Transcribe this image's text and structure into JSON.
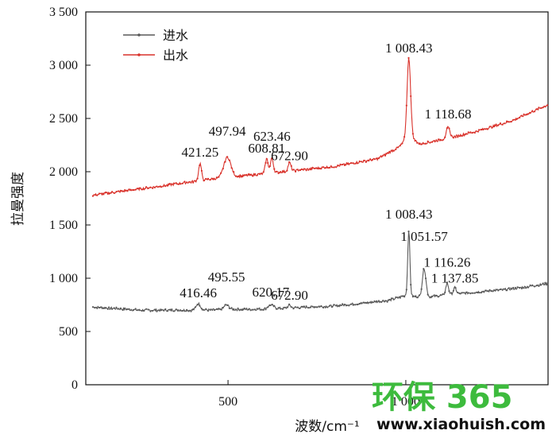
{
  "chart_data": {
    "type": "line",
    "xlabel": "波数/cm⁻¹",
    "ylabel": "拉曼强度",
    "xlim": [
      100,
      1400
    ],
    "ylim": [
      0,
      3500
    ],
    "x_ticks": [
      500,
      1000
    ],
    "x_tick_labels": [
      "500",
      "1 000"
    ],
    "y_ticks": [
      0,
      500,
      1000,
      1500,
      2000,
      2500,
      3000,
      3500
    ],
    "y_tick_labels": [
      "0",
      "500",
      "1 000",
      "1 500",
      "2 000",
      "2 500",
      "3 000",
      "3 500"
    ],
    "legend": {
      "placement": "top-left"
    },
    "series": [
      {
        "name": "进水",
        "color": "#595959",
        "baseline": [
          [
            120,
            730
          ],
          [
            250,
            700
          ],
          [
            400,
            700
          ],
          [
            600,
            710
          ],
          [
            800,
            740
          ],
          [
            950,
            790
          ],
          [
            1000,
            840
          ],
          [
            1050,
            820
          ],
          [
            1150,
            855
          ],
          [
            1300,
            900
          ],
          [
            1400,
            950
          ]
        ],
        "peaks": [
          [
            416.46,
            60,
            6
          ],
          [
            495.55,
            45,
            7
          ],
          [
            620.17,
            35,
            8
          ],
          [
            672.9,
            25,
            4
          ],
          [
            1008.43,
            620,
            3
          ],
          [
            1051.57,
            270,
            5
          ],
          [
            1116.26,
            110,
            4
          ],
          [
            1137.85,
            60,
            4
          ]
        ]
      },
      {
        "name": "出水",
        "color": "#d9322b",
        "baseline": [
          [
            120,
            1780
          ],
          [
            300,
            1860
          ],
          [
            450,
            1930
          ],
          [
            600,
            1980
          ],
          [
            800,
            2050
          ],
          [
            920,
            2120
          ],
          [
            980,
            2230
          ],
          [
            1010,
            2330
          ],
          [
            1040,
            2260
          ],
          [
            1100,
            2300
          ],
          [
            1200,
            2380
          ],
          [
            1300,
            2480
          ],
          [
            1400,
            2630
          ]
        ],
        "peaks": [
          [
            421.25,
            160,
            4
          ],
          [
            497.94,
            190,
            10
          ],
          [
            608.81,
            140,
            4
          ],
          [
            623.46,
            140,
            4
          ],
          [
            672.9,
            80,
            4
          ],
          [
            1008.43,
            740,
            5
          ],
          [
            1118.68,
            100,
            5
          ]
        ]
      }
    ],
    "annotations": [
      {
        "text": "421.25",
        "x": 421.25,
        "y": 2140
      },
      {
        "text": "497.94",
        "x": 497.94,
        "y": 2340
      },
      {
        "text": "608.81",
        "x": 608.81,
        "y": 2180
      },
      {
        "text": "623.46",
        "x": 623.46,
        "y": 2290
      },
      {
        "text": "672.90",
        "x": 672.9,
        "y": 2110
      },
      {
        "text": "1 008.43",
        "x": 1008.43,
        "y": 3120
      },
      {
        "text": "1 118.68",
        "x": 1118.68,
        "y": 2500
      },
      {
        "text": "416.46",
        "x": 416.46,
        "y": 820
      },
      {
        "text": "495.55",
        "x": 495.55,
        "y": 970
      },
      {
        "text": "620.17",
        "x": 620.17,
        "y": 830
      },
      {
        "text": "672.90",
        "x": 672.9,
        "y": 800
      },
      {
        "text": "1 008.43",
        "x": 1008.43,
        "y": 1560
      },
      {
        "text": "1 051.57",
        "x": 1051.57,
        "y": 1350
      },
      {
        "text": "1 116.26",
        "x": 1116.26,
        "y": 1110
      },
      {
        "text": "1 137.85",
        "x": 1137.85,
        "y": 960
      }
    ]
  },
  "watermark": {
    "brand": "环保 365",
    "url": "www.xiaohuish.com"
  }
}
